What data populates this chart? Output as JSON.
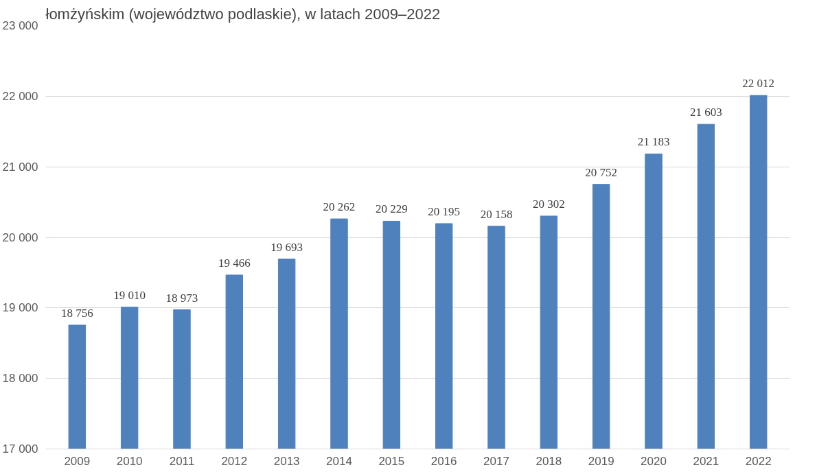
{
  "chart_data": {
    "type": "bar",
    "title": "łomżyńskim (województwo podlaskie), w latach 2009–2022",
    "categories": [
      "2009",
      "2010",
      "2011",
      "2012",
      "2013",
      "2014",
      "2015",
      "2016",
      "2017",
      "2018",
      "2019",
      "2020",
      "2021",
      "2022"
    ],
    "values": [
      18756,
      19010,
      18973,
      19466,
      19693,
      20262,
      20229,
      20195,
      20158,
      20302,
      20752,
      21183,
      21603,
      22012
    ],
    "value_labels": [
      "18 756",
      "19 010",
      "18 973",
      "19 466",
      "19 693",
      "20 262",
      "20 229",
      "20 195",
      "20 158",
      "20 302",
      "20 752",
      "21 183",
      "21 603",
      "22 012"
    ],
    "color": "#4f81bd",
    "ylim": [
      17000,
      23000
    ],
    "yticks": [
      {
        "value": 17000,
        "label": "17 000"
      },
      {
        "value": 18000,
        "label": "18 000"
      },
      {
        "value": 19000,
        "label": "19 000"
      },
      {
        "value": 20000,
        "label": "20 000"
      },
      {
        "value": 21000,
        "label": "21 000"
      },
      {
        "value": 22000,
        "label": "22 000"
      },
      {
        "value": 23000,
        "label": "23 000"
      }
    ],
    "grid": "y"
  }
}
